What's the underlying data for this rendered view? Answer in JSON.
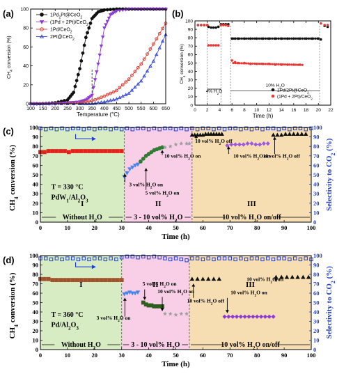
{
  "chart_data": [
    {
      "panel": "(a)",
      "type": "line",
      "ylabel": "CH4 conversion (%)",
      "xlabel": "Temperature (°C)",
      "xlim": [
        100,
        650
      ],
      "ylim": [
        0,
        100
      ],
      "xticks": [
        100,
        150,
        200,
        250,
        300,
        350,
        400,
        450,
        500,
        550,
        600,
        650
      ],
      "yticks": [
        0,
        20,
        40,
        60,
        80,
        100
      ],
      "vline_x": 350,
      "legend_position": "top-left",
      "series": [
        {
          "name": "1Pd2Pt@CeO2",
          "color": "#111111",
          "marker": "circle-filled",
          "x": [
            100,
            150,
            200,
            250,
            275,
            300,
            325,
            350,
            375,
            400,
            450,
            500,
            550,
            600,
            650
          ],
          "y": [
            0,
            0,
            1,
            4,
            12,
            37,
            70,
            90,
            97,
            99,
            100,
            100,
            100,
            100,
            100
          ]
        },
        {
          "name": "(1Pd + 2Pt)/CeO2",
          "color": "#8e3bd6",
          "marker": "triangle-down-filled",
          "x": [
            100,
            150,
            200,
            250,
            300,
            325,
            350,
            375,
            400,
            425,
            450,
            500,
            550,
            600,
            650
          ],
          "y": [
            0,
            0,
            0,
            1,
            2,
            4,
            9,
            42,
            80,
            94,
            98,
            100,
            100,
            100,
            100
          ]
        },
        {
          "name": "1Pd/CeO2",
          "color": "#d9423a",
          "marker": "circle-open",
          "x": [
            100,
            200,
            300,
            350,
            400,
            450,
            500,
            550,
            600,
            650
          ],
          "y": [
            0,
            0,
            1,
            3,
            8,
            14,
            26,
            42,
            63,
            85
          ]
        },
        {
          "name": "2Pt@CeO2",
          "color": "#3b50d6",
          "marker": "triangle-open",
          "x": [
            100,
            200,
            300,
            350,
            400,
            450,
            500,
            550,
            600,
            650
          ],
          "y": [
            0,
            0,
            0,
            0,
            2,
            5,
            11,
            24,
            45,
            73
          ]
        }
      ]
    },
    {
      "panel": "(b)",
      "type": "scatter",
      "ylabel": "CH4 conversion (%)",
      "xlabel": "Time (h)",
      "xlim": [
        0,
        22
      ],
      "ylim": [
        0,
        100
      ],
      "xticks": [
        0,
        2,
        4,
        6,
        8,
        10,
        12,
        14,
        16,
        18,
        20,
        22
      ],
      "yticks": [
        0,
        10,
        20,
        30,
        40,
        50,
        60,
        70,
        80,
        90,
        100
      ],
      "annotations": [
        "4% H2O",
        "10% H2O"
      ],
      "legend_position": "bottom-right",
      "series": [
        {
          "name": "1Pd/2Pt@CeO2",
          "color": "#111111",
          "x": [
            0.5,
            1,
            1.5,
            2,
            2.2,
            2.6,
            3,
            3.4,
            3.8,
            4.2,
            4.6,
            5,
            5.4,
            6,
            6.5,
            7,
            8,
            9,
            10,
            11,
            12,
            13,
            14,
            15,
            16,
            17,
            18,
            19,
            20,
            20.4,
            21,
            21.5
          ],
          "y": [
            95,
            95,
            95,
            95,
            93,
            92,
            92,
            92,
            93,
            96,
            96,
            96,
            96,
            79,
            79,
            79,
            79,
            79,
            79,
            79,
            79,
            79,
            79,
            79,
            79,
            79,
            79,
            79,
            79,
            78,
            94,
            93
          ]
        },
        {
          "name": "(1Pd + 2Pt)/CeO2",
          "color": "#e53935",
          "x": [
            0.5,
            1,
            1.5,
            2,
            2.2,
            2.6,
            3,
            3.4,
            3.8,
            4.2,
            4.6,
            5,
            5.4,
            6,
            6.5,
            7,
            8,
            9,
            10,
            11,
            12,
            13,
            14,
            15,
            16,
            17,
            20.4,
            21,
            21.5
          ],
          "y": [
            95,
            95,
            95,
            95,
            71,
            71,
            71,
            71,
            71,
            95,
            95,
            95,
            94,
            53,
            51,
            50,
            50,
            49,
            49,
            49,
            49,
            48,
            48,
            48,
            48,
            48,
            97,
            95,
            95
          ]
        }
      ]
    },
    {
      "panel": "(c)",
      "type": "scatter",
      "xlabel": "Time (h)",
      "ylabel": "CH4 conversion (%)",
      "ylabel_right": "Selectivity to CO2 (%)",
      "xlim": [
        0,
        100
      ],
      "ylim": [
        0,
        100
      ],
      "xticks": [
        0,
        10,
        20,
        30,
        40,
        50,
        60,
        70,
        80,
        90,
        100
      ],
      "yticks": [
        0,
        10,
        20,
        30,
        40,
        50,
        60,
        70,
        80,
        90,
        100
      ],
      "condition": "T = 330 °C",
      "catalyst": "PdW1/Al2O3",
      "regions": [
        {
          "roman": "I",
          "label": "Without H2O",
          "x": [
            0,
            31
          ],
          "color": "#d8ecc3"
        },
        {
          "roman": "II",
          "label": "3 - 10 vol% H2O",
          "x": [
            31,
            56
          ],
          "color": "#f8cfe6"
        },
        {
          "roman": "III",
          "label": "10 vol% H2O on/off",
          "x": [
            56,
            100
          ],
          "color": "#f6deb2"
        }
      ],
      "annotations": [
        "3 vol% H2O on",
        "5 vol% H2O on",
        "10 vol% H2O on",
        "10 vol% H2O off",
        "10 vol% H2O on",
        "10 vol% H2O off"
      ],
      "series": [
        {
          "name": "CH4 conversion (dry)",
          "color": "#e0241c",
          "marker": "square-filled",
          "x": [
            0,
            1.5,
            3,
            4.5,
            6,
            7.5,
            9,
            10.5,
            12,
            13.5,
            15,
            16.5,
            18,
            19.5,
            21,
            22.5,
            24,
            25.5,
            27,
            28.5,
            30
          ],
          "y": [
            74,
            74,
            75,
            75,
            75,
            75,
            75,
            74,
            75,
            75,
            75,
            75,
            75,
            75,
            75,
            75,
            75,
            75,
            75,
            75,
            75
          ]
        },
        {
          "name": "CH4 conversion (3 vol% H2O)",
          "color": "#4a86e8",
          "marker": "triangle-down-filled",
          "x": [
            31,
            32,
            33,
            34,
            35,
            36
          ],
          "y": [
            48,
            52,
            56,
            58,
            60,
            61
          ]
        },
        {
          "name": "CH4 conversion (5 vol% H2O)",
          "color": "#2e7d32",
          "marker": "circle-filled",
          "x": [
            37,
            38,
            39,
            40,
            41,
            42,
            43,
            44,
            45
          ],
          "y": [
            64,
            67,
            70,
            72,
            74,
            76,
            77,
            78,
            79
          ]
        },
        {
          "name": "CH4 conversion (10 vol% H2O)",
          "color": "#9e9e9e",
          "marker": "star",
          "x": [
            46,
            48,
            50,
            52,
            54,
            55
          ],
          "y": [
            79,
            80,
            82,
            83,
            83,
            83
          ]
        },
        {
          "name": "CH4 conversion (off)",
          "color": "#111111",
          "marker": "triangle-up-filled",
          "x": [
            56,
            57,
            58,
            59,
            60,
            61,
            62,
            63,
            64,
            65,
            66,
            67,
            86,
            87.5,
            89,
            90.5,
            92,
            93.5,
            95,
            96.5,
            98
          ],
          "y": [
            92,
            92,
            92,
            92,
            92,
            93,
            93,
            93,
            93,
            93,
            93,
            93,
            92,
            92,
            92,
            93,
            93,
            93,
            93,
            93,
            93
          ]
        },
        {
          "name": "CH4 conversion (10 vol% H2O, on/off)",
          "color": "#9b59e0",
          "marker": "diamond-filled",
          "x": [
            69,
            70.5,
            72,
            73.5,
            75,
            76.5,
            78,
            79.5,
            81,
            82.5,
            84
          ],
          "y": [
            81,
            82,
            82,
            82,
            82,
            83,
            83,
            82,
            82,
            83,
            83
          ]
        },
        {
          "name": "Selectivity to CO2",
          "color": "#1f3fcc",
          "marker": "square-open",
          "x": [
            0,
            2,
            4,
            6,
            8,
            10,
            12,
            14,
            16,
            18,
            20,
            22,
            24,
            26,
            28,
            30,
            32,
            34,
            36,
            38,
            40,
            42,
            44,
            46,
            48,
            50,
            52,
            54,
            56,
            58,
            60,
            62,
            64,
            66,
            68,
            70,
            72,
            74,
            76,
            78,
            80,
            82,
            84,
            86,
            88,
            90,
            92,
            94,
            96,
            98,
            100
          ],
          "y": [
            99,
            98,
            99,
            98,
            99,
            98,
            99,
            99,
            98,
            99,
            98,
            99,
            99,
            98,
            99,
            98,
            99,
            98,
            99,
            99,
            98,
            99,
            98,
            99,
            99,
            98,
            99,
            98,
            99,
            98,
            99,
            99,
            98,
            99,
            98,
            99,
            99,
            98,
            99,
            98,
            99,
            98,
            99,
            99,
            98,
            99,
            98,
            99,
            99,
            98,
            99
          ]
        }
      ]
    },
    {
      "panel": "(d)",
      "type": "scatter",
      "xlabel": "Time (h)",
      "ylabel": "CH4 conversion (%)",
      "ylabel_right": "Selectivity to CO2 (%)",
      "xlim": [
        0,
        100
      ],
      "ylim": [
        0,
        100
      ],
      "xticks": [
        0,
        10,
        20,
        30,
        40,
        50,
        60,
        70,
        80,
        90,
        100
      ],
      "yticks": [
        0,
        10,
        20,
        30,
        40,
        50,
        60,
        70,
        80,
        90,
        100
      ],
      "condition": "T = 360 °C",
      "catalyst": "Pd/Al2O3",
      "regions": [
        {
          "roman": "I",
          "label": "Without H2O",
          "x": [
            0,
            30
          ],
          "color": "#d8ecc3"
        },
        {
          "roman": "II",
          "label": "3 - 10 vol% H2O",
          "x": [
            30,
            55
          ],
          "color": "#f8cfe6"
        },
        {
          "roman": "III",
          "label": "10 vol% H2O on/off",
          "x": [
            55,
            100
          ],
          "color": "#f6deb2"
        }
      ],
      "annotations": [
        "3 vol% H2O on",
        "5 vol% H2O on",
        "10 vol% H2O on",
        "10 vol% H2O off",
        "10 vol% H2O on",
        "10 vol% H2O off"
      ],
      "series": [
        {
          "name": "CH4 conversion (dry)",
          "color": "#a0522d",
          "marker": "square-filled",
          "x": [
            0,
            1.5,
            3,
            4.5,
            6,
            7.5,
            9,
            10.5,
            12,
            13.5,
            15,
            16.5,
            18,
            19.5,
            21,
            22.5,
            24,
            25.5,
            27,
            28.5,
            30
          ],
          "y": [
            75,
            75,
            75,
            74,
            74,
            74,
            74,
            74,
            74,
            74,
            74,
            74,
            74,
            74,
            74,
            74,
            74,
            74,
            74,
            74,
            74
          ]
        },
        {
          "name": "CH4 conversion (3 vol% H2O)",
          "color": "#4a86e8",
          "marker": "triangle-down-filled",
          "x": [
            31,
            32,
            33,
            34,
            35,
            36
          ],
          "y": [
            59,
            60,
            61,
            60,
            60,
            61
          ]
        },
        {
          "name": "CH4 conversion (5 vol% H2O)",
          "color": "#2e5e1e",
          "marker": "square-filled",
          "x": [
            38,
            39,
            40,
            41,
            42,
            43,
            44,
            45
          ],
          "y": [
            50,
            48,
            47,
            47,
            46,
            46,
            46,
            46
          ]
        },
        {
          "name": "CH4 conversion (10 vol% H2O)",
          "color": "#9e9e9e",
          "marker": "star",
          "x": [
            46,
            48,
            50,
            52,
            54
          ],
          "y": [
            38,
            38,
            37,
            38,
            38
          ]
        },
        {
          "name": "CH4 conversion (off)",
          "color": "#111111",
          "marker": "triangle-up-filled",
          "x": [
            56,
            58,
            60,
            62,
            64,
            66,
            87,
            89,
            91,
            93,
            95,
            97,
            99
          ],
          "y": [
            75,
            75,
            75,
            75,
            75,
            75,
            77,
            77,
            77,
            77,
            77,
            77,
            77
          ]
        },
        {
          "name": "CH4 conversion (10 vol% H2O, on/off)",
          "color": "#8e3bd6",
          "marker": "diamond-filled",
          "x": [
            68,
            69.5,
            71,
            72.5,
            74,
            75.5,
            77,
            78.5,
            80,
            81.5,
            83,
            84.5,
            86
          ],
          "y": [
            35,
            35,
            35,
            35,
            35,
            35,
            35,
            35,
            35,
            35,
            35,
            35,
            35
          ]
        },
        {
          "name": "Selectivity to CO2",
          "color": "#1f3fcc",
          "marker": "square-open",
          "x": [
            0,
            2,
            4,
            6,
            8,
            10,
            12,
            14,
            16,
            18,
            20,
            22,
            24,
            26,
            28,
            30,
            32,
            34,
            36,
            38,
            40,
            42,
            44,
            46,
            48,
            50,
            52,
            54,
            56,
            58,
            60,
            62,
            64,
            66,
            68,
            70,
            72,
            74,
            76,
            78,
            80,
            82,
            84,
            86,
            88,
            90,
            92,
            94,
            96,
            98,
            100
          ],
          "y": [
            97,
            97,
            96,
            97,
            96,
            97,
            97,
            96,
            97,
            96,
            97,
            97,
            96,
            97,
            96,
            98,
            99,
            99,
            98,
            99,
            98,
            99,
            98,
            97,
            96,
            97,
            96,
            95,
            97,
            97,
            96,
            97,
            96,
            97,
            97,
            97,
            96,
            97,
            96,
            97,
            97,
            96,
            97,
            96,
            97,
            97,
            96,
            97,
            96,
            97,
            96
          ]
        }
      ]
    }
  ]
}
